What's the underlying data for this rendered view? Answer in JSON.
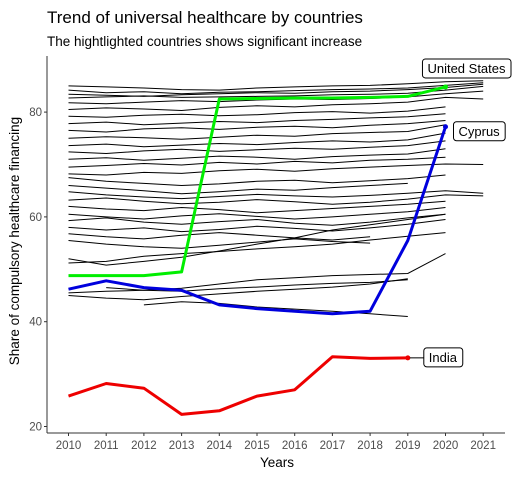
{
  "chart_data": {
    "type": "line",
    "title": "Trend of universal healthcare by countries",
    "subtitle": "The hightlighted countries shows significant increase",
    "xlabel": "Years",
    "ylabel": "Share of compulsory healthcare financing",
    "xlim": [
      2010,
      2021
    ],
    "ylim": [
      20,
      90
    ],
    "x_ticks": [
      "2010",
      "2011",
      "2012",
      "2013",
      "2014",
      "2015",
      "2016",
      "2017",
      "2018",
      "2019",
      "2020",
      "2021"
    ],
    "y_ticks": [
      "20",
      "40",
      "60",
      "80"
    ],
    "grid": false,
    "legend": "none",
    "background_series_color": "#000000",
    "highlight_series": [
      {
        "name": "United States",
        "color": "#00ee00",
        "x": [
          2010,
          2011,
          2012,
          2013,
          2014,
          2015,
          2016,
          2017,
          2018,
          2019,
          2020
        ],
        "values": [
          48.8,
          48.8,
          48.8,
          49.5,
          82.5,
          82.6,
          82.7,
          82.7,
          82.8,
          83.0,
          84.8
        ]
      },
      {
        "name": "Cyprus",
        "color": "#0000dd",
        "x": [
          2010,
          2011,
          2012,
          2013,
          2014,
          2015,
          2016,
          2017,
          2018,
          2019,
          2020
        ],
        "values": [
          46.2,
          47.8,
          46.5,
          46.0,
          43.2,
          42.5,
          42.0,
          41.5,
          42.0,
          55.5,
          77.2
        ]
      },
      {
        "name": "India",
        "color": "#ee0000",
        "x": [
          2010,
          2011,
          2012,
          2013,
          2014,
          2015,
          2016,
          2017,
          2018,
          2019
        ],
        "values": [
          25.8,
          28.2,
          27.3,
          22.3,
          23.0,
          25.8,
          27.0,
          33.3,
          33.0,
          33.1
        ]
      }
    ],
    "background_series": [
      {
        "x": [
          2010,
          2011,
          2012,
          2013,
          2014,
          2015,
          2016,
          2017,
          2018,
          2019,
          2020,
          2021
        ],
        "values": [
          85.0,
          84.8,
          84.6,
          84.3,
          84.2,
          84.6,
          84.8,
          85.0,
          85.1,
          85.4,
          85.8,
          86.0
        ]
      },
      {
        "x": [
          2010,
          2011,
          2012,
          2013,
          2014,
          2015,
          2016,
          2017,
          2018,
          2019,
          2020,
          2021
        ],
        "values": [
          84.2,
          83.7,
          83.9,
          83.5,
          83.8,
          83.9,
          84.1,
          84.3,
          84.4,
          84.6,
          85.1,
          85.6
        ]
      },
      {
        "x": [
          2010,
          2011,
          2012,
          2013,
          2014,
          2015,
          2016,
          2017,
          2018,
          2019,
          2020,
          2021
        ],
        "values": [
          83.4,
          83.2,
          83.0,
          83.3,
          83.5,
          83.7,
          83.6,
          83.9,
          84.0,
          84.3,
          84.7,
          85.3
        ]
      },
      {
        "x": [
          2010,
          2011,
          2012,
          2013,
          2014,
          2015,
          2016,
          2017,
          2018,
          2019,
          2020,
          2021
        ],
        "values": [
          82.7,
          82.9,
          83.1,
          82.8,
          82.9,
          83.0,
          83.1,
          83.3,
          83.4,
          83.6,
          84.2,
          84.9
        ]
      },
      {
        "x": [
          2010,
          2011,
          2012,
          2013,
          2014,
          2015,
          2016,
          2017,
          2018,
          2019,
          2020,
          2021
        ],
        "values": [
          81.8,
          81.6,
          81.9,
          82.2,
          82.0,
          82.3,
          82.5,
          82.4,
          82.6,
          82.9,
          83.5,
          84.0
        ]
      },
      {
        "x": [
          2010,
          2011,
          2012,
          2013,
          2014,
          2015,
          2016,
          2017,
          2018,
          2019,
          2020,
          2021
        ],
        "values": [
          80.5,
          80.8,
          80.6,
          80.3,
          80.9,
          81.2,
          81.0,
          81.4,
          81.6,
          81.9,
          82.8,
          82.5
        ]
      },
      {
        "x": [
          2010,
          2011,
          2012,
          2013,
          2014,
          2015,
          2016,
          2017,
          2018,
          2019,
          2020
        ],
        "values": [
          79.2,
          79.0,
          79.4,
          79.6,
          79.3,
          79.5,
          79.9,
          80.1,
          79.8,
          80.2,
          81.0
        ]
      },
      {
        "x": [
          2010,
          2011,
          2012,
          2013,
          2014,
          2015,
          2016,
          2017,
          2018,
          2019,
          2020
        ],
        "values": [
          77.8,
          78.1,
          77.6,
          77.9,
          78.2,
          78.0,
          78.4,
          78.6,
          78.9,
          79.1,
          79.7
        ]
      },
      {
        "x": [
          2010,
          2011,
          2012,
          2013,
          2014,
          2015,
          2016,
          2017,
          2018,
          2019,
          2020
        ],
        "values": [
          76.5,
          76.2,
          76.8,
          77.0,
          76.7,
          77.1,
          77.3,
          77.0,
          77.5,
          77.8,
          78.4
        ]
      },
      {
        "x": [
          2010,
          2011,
          2012,
          2013,
          2014,
          2015,
          2016,
          2017,
          2018,
          2019,
          2020
        ],
        "values": [
          75.0,
          75.3,
          75.1,
          74.8,
          75.2,
          75.6,
          75.4,
          75.9,
          76.1,
          76.3,
          77.6
        ]
      },
      {
        "x": [
          2010,
          2011,
          2012,
          2013,
          2014,
          2015,
          2016,
          2017,
          2018,
          2019,
          2020
        ],
        "values": [
          73.6,
          73.9,
          73.4,
          73.7,
          74.0,
          73.8,
          74.2,
          74.5,
          74.3,
          74.7,
          76.0
        ]
      },
      {
        "x": [
          2010,
          2011,
          2012,
          2013,
          2014,
          2015,
          2016,
          2017,
          2018,
          2019,
          2020
        ],
        "values": [
          72.4,
          72.1,
          72.6,
          72.9,
          72.5,
          72.8,
          73.1,
          72.9,
          73.3,
          73.6,
          74.5
        ]
      },
      {
        "x": [
          2010,
          2011,
          2012,
          2013,
          2014,
          2015,
          2016,
          2017,
          2018,
          2019,
          2020
        ],
        "values": [
          71.0,
          71.3,
          70.8,
          71.2,
          71.6,
          71.4,
          71.0,
          71.5,
          71.8,
          72.0,
          73.0
        ]
      },
      {
        "x": [
          2010,
          2011,
          2012,
          2013,
          2014,
          2015,
          2016,
          2017,
          2018,
          2019,
          2020
        ],
        "values": [
          69.5,
          69.8,
          70.2,
          69.9,
          70.4,
          70.1,
          70.6,
          70.3,
          70.8,
          71.0,
          71.4
        ]
      },
      {
        "x": [
          2010,
          2011,
          2012,
          2013,
          2014,
          2015,
          2016,
          2017,
          2018,
          2019,
          2020,
          2021
        ],
        "values": [
          68.2,
          68.0,
          68.5,
          68.3,
          68.8,
          69.1,
          68.7,
          69.2,
          69.5,
          69.8,
          70.1,
          70.0
        ]
      },
      {
        "x": [
          2010,
          2011,
          2012,
          2013,
          2014,
          2015,
          2016,
          2017,
          2018,
          2019,
          2020
        ],
        "values": [
          67.5,
          66.8,
          66.4,
          66.0,
          66.3,
          66.8,
          67.0,
          66.5,
          66.9,
          67.3,
          68.0
        ]
      },
      {
        "x": [
          2010,
          2011,
          2012,
          2013,
          2014,
          2015,
          2016,
          2017,
          2018,
          2019
        ],
        "values": [
          66.0,
          65.5,
          65.0,
          64.4,
          64.8,
          65.3,
          65.1,
          65.6,
          66.0,
          66.4
        ]
      },
      {
        "x": [
          2010,
          2011,
          2012,
          2013,
          2014,
          2015,
          2016,
          2017,
          2018,
          2019,
          2020,
          2021
        ],
        "values": [
          64.8,
          64.2,
          63.8,
          63.5,
          63.9,
          64.3,
          64.0,
          63.8,
          64.1,
          64.5,
          65.0,
          64.5
        ]
      },
      {
        "x": [
          2010,
          2011,
          2012,
          2013,
          2014,
          2015,
          2016,
          2017,
          2018,
          2019,
          2020,
          2021
        ],
        "values": [
          63.2,
          63.6,
          63.0,
          62.5,
          62.8,
          63.3,
          62.9,
          62.4,
          62.8,
          63.4,
          64.2,
          64.0
        ]
      },
      {
        "x": [
          2010,
          2011,
          2012,
          2013,
          2014,
          2015,
          2016,
          2017,
          2018,
          2019,
          2020
        ],
        "values": [
          62.0,
          61.5,
          61.2,
          61.8,
          61.4,
          60.8,
          61.2,
          61.6,
          62.0,
          62.4,
          63.0
        ]
      },
      {
        "x": [
          2010,
          2011,
          2012,
          2013,
          2014,
          2015,
          2016,
          2017,
          2018,
          2019,
          2020
        ],
        "values": [
          60.5,
          60.0,
          59.6,
          60.2,
          60.6,
          60.1,
          59.6,
          60.0,
          60.5,
          61.0,
          61.8
        ]
      },
      {
        "x": [
          2010,
          2011,
          2012,
          2013,
          2014,
          2015,
          2016,
          2017,
          2018,
          2019,
          2020
        ],
        "values": [
          59.3,
          59.8,
          59.0,
          58.6,
          59.1,
          59.5,
          58.8,
          58.4,
          59.0,
          59.8,
          60.5
        ]
      },
      {
        "x": [
          2010,
          2011,
          2012,
          2013,
          2014,
          2015,
          2016,
          2017,
          2018,
          2019,
          2020
        ],
        "values": [
          58.0,
          57.5,
          57.9,
          57.2,
          57.6,
          58.2,
          57.8,
          57.3,
          57.9,
          58.6,
          59.5
        ]
      },
      {
        "x": [
          2010,
          2011,
          2012,
          2013,
          2014,
          2015,
          2016,
          2017,
          2018
        ],
        "values": [
          56.8,
          56.2,
          55.8,
          56.5,
          57.0,
          56.5,
          56.0,
          55.6,
          56.2
        ]
      },
      {
        "x": [
          2010,
          2011,
          2012,
          2013,
          2014,
          2015,
          2016,
          2017,
          2018
        ],
        "values": [
          55.5,
          54.8,
          54.3,
          54.0,
          54.6,
          55.2,
          55.8,
          55.3,
          55.0
        ]
      },
      {
        "x": [
          2010,
          2011,
          2012,
          2013,
          2014,
          2015,
          2016,
          2017,
          2018,
          2019,
          2020
        ],
        "values": [
          52.0,
          50.8,
          51.5,
          52.3,
          53.5,
          54.8,
          56.0,
          57.5,
          58.5,
          59.5,
          60.5
        ]
      },
      {
        "x": [
          2010,
          2011,
          2012,
          2013,
          2014,
          2015,
          2016,
          2017,
          2018,
          2019,
          2020
        ],
        "values": [
          51.2,
          51.5,
          52.5,
          53.0,
          53.4,
          53.9,
          54.3,
          54.8,
          55.6,
          56.3,
          57.0
        ]
      },
      {
        "x": [
          2010,
          2011,
          2012,
          2013,
          2014,
          2015,
          2016,
          2017,
          2018,
          2019,
          2020
        ],
        "values": [
          45.5,
          45.8,
          46.0,
          46.4,
          47.2,
          48.0,
          48.4,
          48.8,
          49.0,
          49.2,
          53.0
        ]
      },
      {
        "x": [
          2010,
          2011,
          2012,
          2013,
          2014,
          2015,
          2016,
          2017,
          2018,
          2019
        ],
        "values": [
          45.0,
          44.5,
          44.2,
          44.8,
          45.3,
          45.8,
          46.2,
          46.6,
          47.2,
          48.2
        ]
      },
      {
        "x": [
          2012,
          2013,
          2014,
          2015,
          2016,
          2017,
          2018,
          2019
        ],
        "values": [
          43.2,
          43.8,
          43.5,
          42.8,
          42.4,
          42.0,
          41.5,
          41.0
        ]
      },
      {
        "x": [
          2011,
          2012,
          2013,
          2014,
          2015,
          2016,
          2017,
          2018,
          2019
        ],
        "values": [
          46.5,
          46.0,
          45.8,
          46.3,
          46.6,
          47.0,
          47.3,
          47.5,
          48.0
        ]
      }
    ],
    "labels": [
      {
        "text": "United States",
        "series": "United States",
        "x": 2020,
        "y": 84.8
      },
      {
        "text": "Cyprus",
        "series": "Cyprus",
        "x": 2020,
        "y": 77.2
      },
      {
        "text": "India",
        "series": "India",
        "x": 2019,
        "y": 33.1
      }
    ]
  }
}
